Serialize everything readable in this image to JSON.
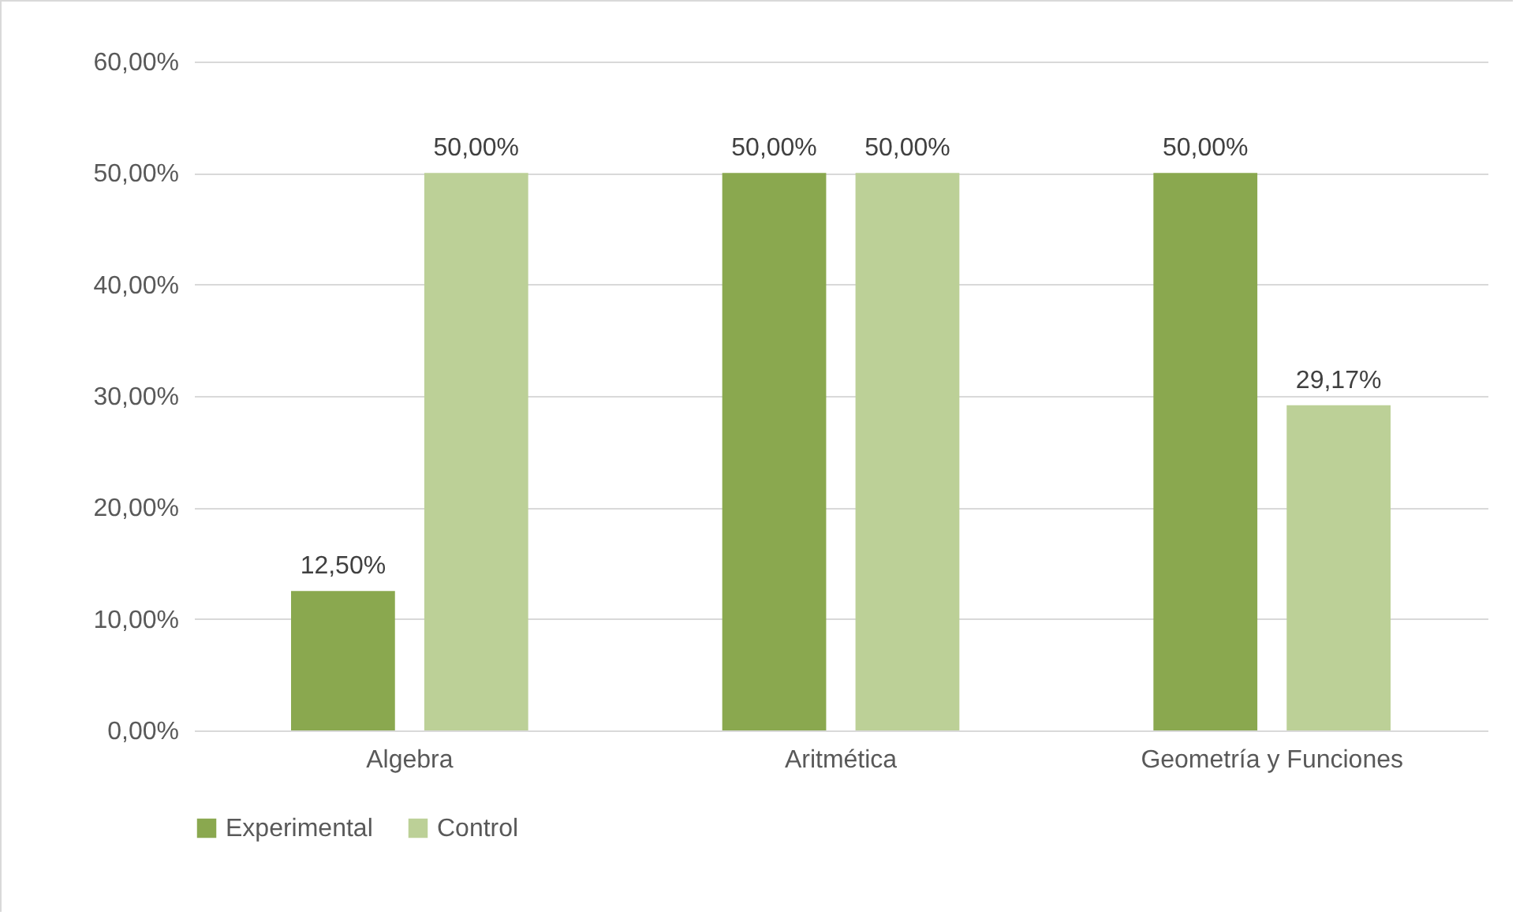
{
  "chart_data": {
    "type": "bar",
    "categories": [
      "Algebra",
      "Aritmética",
      "Geometría y Funciones"
    ],
    "series": [
      {
        "name": "Experimental",
        "color": "#8aa84f",
        "values": [
          12.5,
          50,
          50
        ],
        "value_labels": [
          "12,50%",
          "50,00%",
          "50,00%"
        ]
      },
      {
        "name": "Control",
        "color": "#bcd097",
        "values": [
          50,
          50,
          29.17
        ],
        "value_labels": [
          "50,00%",
          "50,00%",
          "29,17%"
        ]
      }
    ],
    "ylim": [
      0,
      60
    ],
    "yticks": [
      {
        "value": 0,
        "label": "0,00%"
      },
      {
        "value": 10,
        "label": "10,00%"
      },
      {
        "value": 20,
        "label": "20,00%"
      },
      {
        "value": 30,
        "label": "30,00%"
      },
      {
        "value": 40,
        "label": "40,00%"
      },
      {
        "value": 50,
        "label": "50,00%"
      },
      {
        "value": 60,
        "label": "60,00%"
      }
    ],
    "grid": "y",
    "legend": "bottom"
  }
}
